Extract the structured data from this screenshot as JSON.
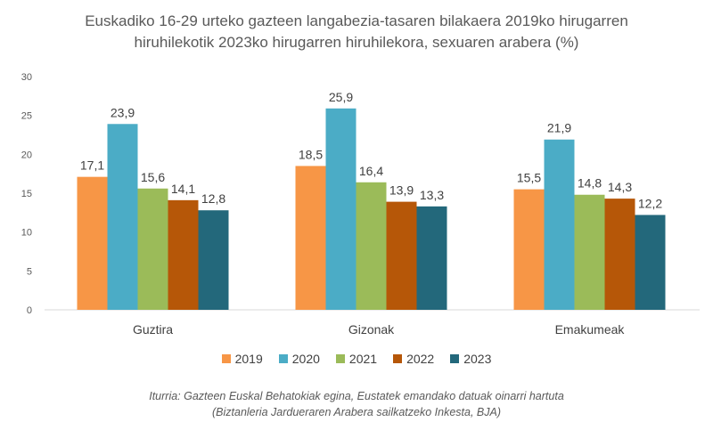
{
  "chart_data": {
    "type": "bar",
    "title": "Euskadiko 16-29 urteko gazteen langabezia-tasaren bilakaera 2019ko hirugarren hiruhilekotik 2023ko hirugarren hiruhilekora, sexuaren arabera (%)",
    "title_lines": [
      "Euskadiko 16-29 urteko gazteen langabezia-tasaren bilakaera 2019ko hirugarren",
      "hiruhilekotik 2023ko hirugarren hiruhilekora, sexuaren arabera (%)"
    ],
    "categories": [
      "Guztira",
      "Gizonak",
      "Emakumeak"
    ],
    "series": [
      {
        "name": "2019",
        "color": "#F79646",
        "values": [
          17.1,
          18.5,
          15.5
        ],
        "labels": [
          "17,1",
          "18,5",
          "15,5"
        ]
      },
      {
        "name": "2020",
        "color": "#4BACC6",
        "values": [
          23.9,
          25.9,
          21.9
        ],
        "labels": [
          "23,9",
          "25,9",
          "21,9"
        ]
      },
      {
        "name": "2021",
        "color": "#9BBB59",
        "values": [
          15.6,
          16.4,
          14.8
        ],
        "labels": [
          "15,6",
          "16,4",
          "14,8"
        ]
      },
      {
        "name": "2022",
        "color": "#B65708",
        "values": [
          14.1,
          13.9,
          14.3
        ],
        "labels": [
          "14,1",
          "13,9",
          "14,3"
        ]
      },
      {
        "name": "2023",
        "color": "#23687B",
        "values": [
          12.8,
          13.3,
          12.2
        ],
        "labels": [
          "12,8",
          "13,3",
          "12,2"
        ]
      }
    ],
    "ylim": [
      0,
      30
    ],
    "yticks": [
      0,
      5,
      10,
      15,
      20,
      25,
      30
    ],
    "xlabel": "",
    "ylabel": "",
    "grid": false,
    "legend": "bottom"
  },
  "source": {
    "line1": "Iturria: Gazteen Euskal Behatokiak egina, Eustatek emandako datuak oinarri hartuta",
    "line2": "(Biztanleria Jarduueraren Arabera sailkatzeko Inkesta, BJA)"
  }
}
